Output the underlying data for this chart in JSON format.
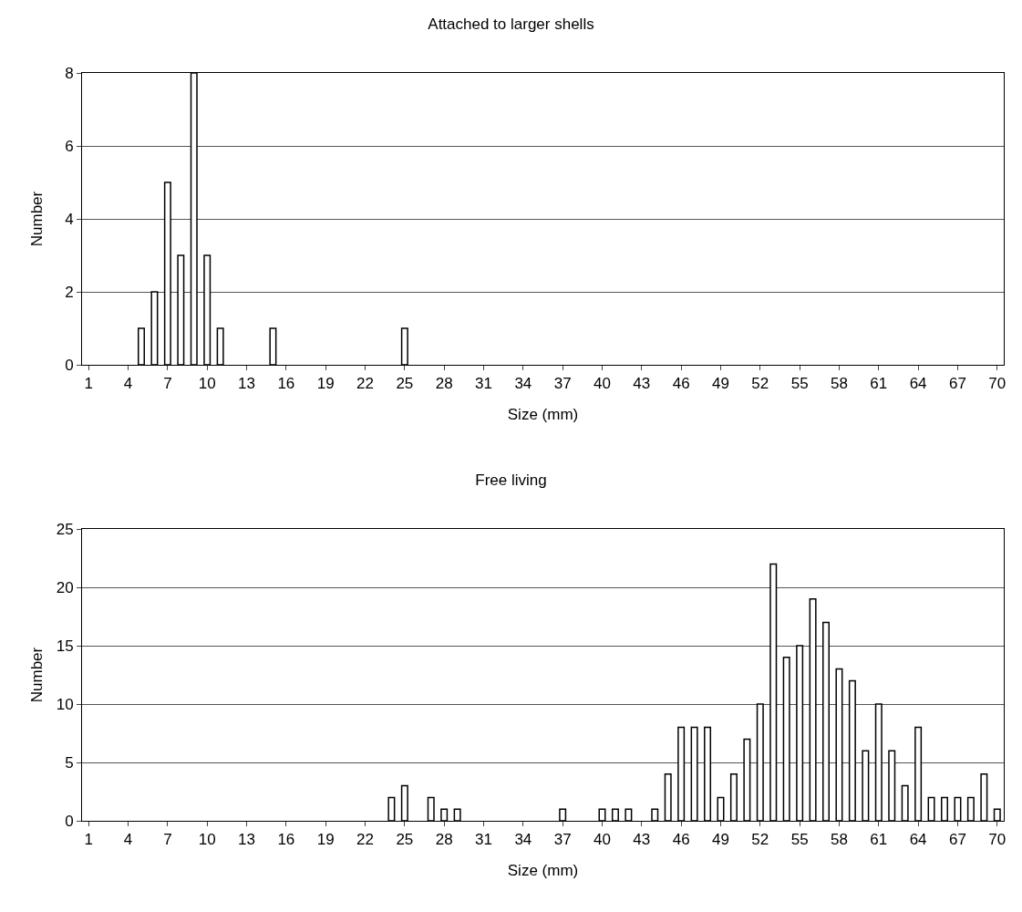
{
  "chart_data": [
    {
      "type": "bar",
      "title": "Attached to larger shells",
      "xlabel": "Size (mm)",
      "ylabel": "Number",
      "categories": [
        "1",
        null,
        null,
        "4",
        null,
        null,
        "7",
        null,
        null,
        "10",
        null,
        null,
        "13",
        null,
        null,
        "16",
        null,
        null,
        "19",
        null,
        null,
        "22",
        null,
        null,
        "25",
        null,
        null,
        "28",
        null,
        null,
        "31",
        null,
        null,
        "34",
        null,
        null,
        "37",
        null,
        null,
        "40",
        null,
        null,
        "43",
        null,
        null,
        "46",
        null,
        null,
        "49",
        null,
        null,
        "52",
        null,
        null,
        "55",
        null,
        null,
        "58",
        null,
        null,
        "61",
        null,
        null,
        "64",
        null,
        null,
        "67",
        null,
        null,
        "70"
      ],
      "values": [
        0,
        0,
        0,
        0,
        1,
        2,
        5,
        3,
        8,
        3,
        1,
        0,
        0,
        0,
        1,
        0,
        0,
        0,
        0,
        0,
        0,
        0,
        0,
        0,
        1,
        0,
        0,
        0,
        0,
        0,
        0,
        0,
        0,
        0,
        0,
        0,
        0,
        0,
        0,
        0,
        0,
        0,
        0,
        0,
        0,
        0,
        0,
        0,
        0,
        0,
        0,
        0,
        0,
        0,
        0,
        0,
        0,
        0,
        0,
        0,
        0,
        0,
        0,
        0,
        0,
        0,
        0,
        0,
        0,
        0
      ],
      "color": "#ffffff",
      "ylim": [
        0,
        8
      ],
      "yticks": [
        0,
        2,
        4,
        6,
        8
      ],
      "grid": "y"
    },
    {
      "type": "bar",
      "title": "Free living",
      "xlabel": "Size (mm)",
      "ylabel": "Number",
      "categories": [
        "1",
        null,
        null,
        "4",
        null,
        null,
        "7",
        null,
        null,
        "10",
        null,
        null,
        "13",
        null,
        null,
        "16",
        null,
        null,
        "19",
        null,
        null,
        "22",
        null,
        null,
        "25",
        null,
        null,
        "28",
        null,
        null,
        "31",
        null,
        null,
        "34",
        null,
        null,
        "37",
        null,
        null,
        "40",
        null,
        null,
        "43",
        null,
        null,
        "46",
        null,
        null,
        "49",
        null,
        null,
        "52",
        null,
        null,
        "55",
        null,
        null,
        "58",
        null,
        null,
        "61",
        null,
        null,
        "64",
        null,
        null,
        "67",
        null,
        null,
        "70"
      ],
      "values": [
        0,
        0,
        0,
        0,
        0,
        0,
        0,
        0,
        0,
        0,
        0,
        0,
        0,
        0,
        0,
        0,
        0,
        0,
        0,
        0,
        0,
        0,
        0,
        2,
        3,
        0,
        2,
        1,
        1,
        0,
        0,
        0,
        0,
        0,
        0,
        0,
        1,
        0,
        0,
        1,
        1,
        1,
        0,
        1,
        4,
        8,
        8,
        8,
        2,
        4,
        7,
        10,
        22,
        14,
        15,
        19,
        17,
        13,
        12,
        6,
        10,
        6,
        3,
        8,
        2,
        2,
        2,
        2,
        4,
        1
      ],
      "color": "#ffffff",
      "ylim": [
        0,
        25
      ],
      "yticks": [
        0,
        5,
        10,
        15,
        20,
        25
      ],
      "grid": "y"
    }
  ]
}
